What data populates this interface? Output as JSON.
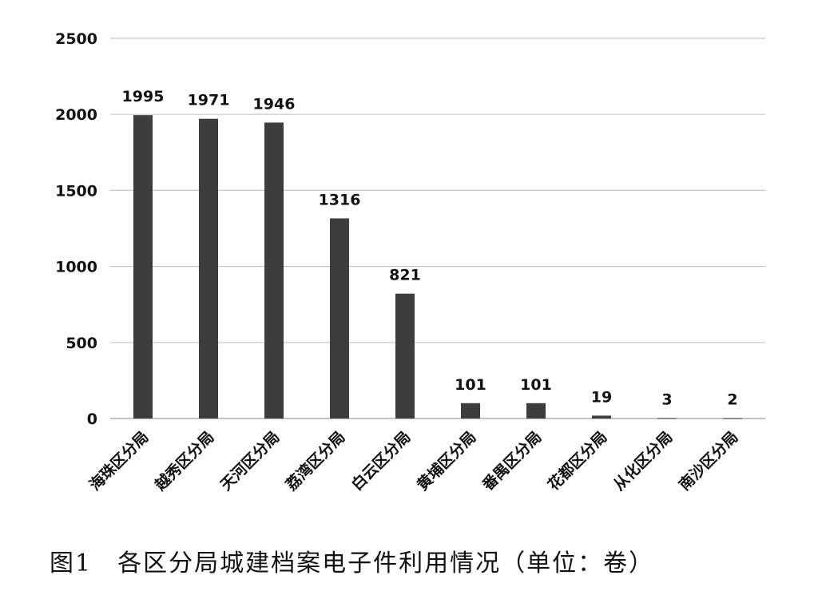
{
  "chart_data": {
    "type": "bar",
    "categories": [
      "海珠区分局",
      "越秀区分局",
      "天河区分局",
      "荔湾区分局",
      "白云区分局",
      "黄埔区分局",
      "番禺区分局",
      "花都区分局",
      "从化区分局",
      "南沙区分局"
    ],
    "values": [
      1995,
      1971,
      1946,
      1316,
      821,
      101,
      101,
      19,
      3,
      2
    ],
    "value_labels": [
      "1995",
      "1971",
      "1946",
      "1316",
      "821",
      "101",
      "101",
      "19",
      "3",
      "2"
    ],
    "y_ticks": [
      "0",
      "500",
      "1000",
      "1500",
      "2000",
      "2500"
    ],
    "ylim": [
      0,
      2500
    ],
    "grid": true,
    "legend": "none",
    "bar_color": "#3d3d3d",
    "grid_color": "#c8c8c8",
    "caption": "图1　各区分局城建档案电子件利用情况（单位：卷）"
  }
}
